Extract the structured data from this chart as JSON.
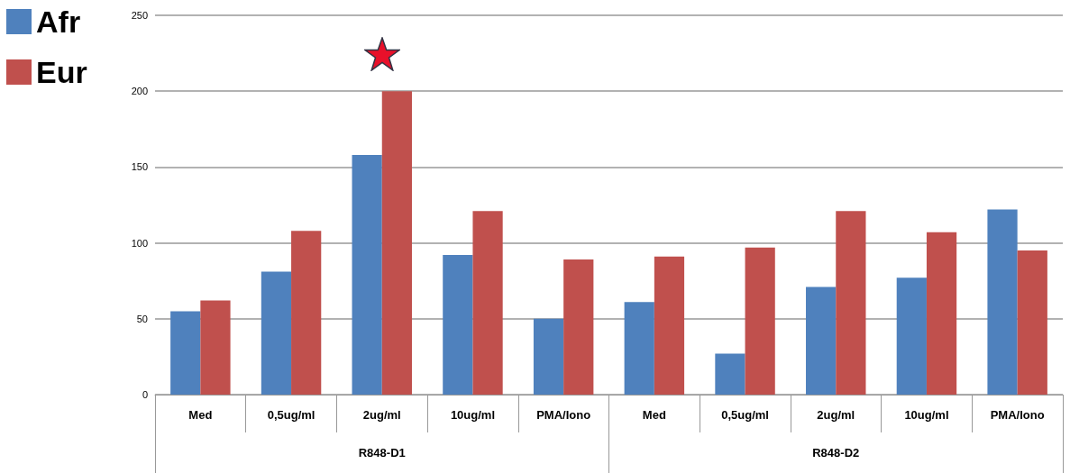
{
  "chart_data": {
    "type": "bar",
    "categories": [
      "Med",
      "0,5ug/ml",
      "2ug/ml",
      "10ug/ml",
      "PMA/Iono",
      "Med",
      "0,5ug/ml",
      "2ug/ml",
      "10ug/ml",
      "PMA/Iono"
    ],
    "series": [
      {
        "name": "Afr",
        "color": "#4f81bd",
        "values": [
          55,
          81,
          158,
          92,
          50,
          61,
          27,
          71,
          77,
          122
        ]
      },
      {
        "name": "Eur",
        "color": "#c0504d",
        "values": [
          62,
          108,
          200,
          121,
          89,
          91,
          97,
          121,
          107,
          95
        ]
      }
    ],
    "annotations": [
      "R848-D1",
      "R848-D2"
    ],
    "ylim": [
      0,
      250
    ],
    "yticks": [
      0,
      50,
      100,
      150,
      200,
      250
    ],
    "grid": "y",
    "legend": "top left"
  }
}
